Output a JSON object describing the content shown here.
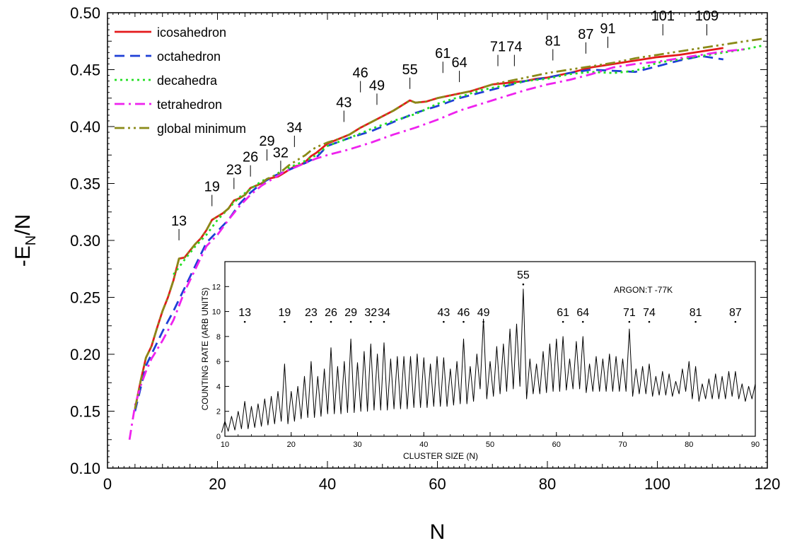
{
  "chart_data": {
    "type": "line",
    "xlabel": "N",
    "ylabel": "-E",
    "ylabel_subscript": "N",
    "ylabel_suffix": "/N",
    "xlim": [
      0,
      120
    ],
    "ylim": [
      0.1,
      0.5
    ],
    "x_ticks": [
      0,
      20,
      40,
      60,
      80,
      100,
      120
    ],
    "x_tick_labels": [
      "0",
      "20",
      "40",
      "60",
      "80",
      "100",
      "120"
    ],
    "y_ticks": [
      0.1,
      0.15,
      0.2,
      0.25,
      0.3,
      0.35,
      0.4,
      0.45,
      0.5
    ],
    "y_tick_labels": [
      "0.10",
      "0.15",
      "0.20",
      "0.25",
      "0.30",
      "0.35",
      "0.40",
      "0.45",
      "0.50"
    ],
    "legend_position": "top-left",
    "series": [
      {
        "name": "icosahedron",
        "color": "#e41a1c",
        "dash": "solid",
        "x": [
          5,
          6,
          7,
          8,
          9,
          10,
          11,
          12,
          13,
          14,
          15,
          16,
          17,
          18,
          19,
          20,
          21,
          22,
          23,
          24,
          25,
          26,
          27,
          28,
          29,
          30,
          31,
          32,
          33,
          34,
          35,
          36,
          37,
          38,
          39,
          40,
          42,
          44,
          46,
          48,
          50,
          52,
          54,
          55,
          56,
          58,
          60,
          62,
          64,
          66,
          68,
          70,
          72,
          74,
          76,
          78,
          80,
          84,
          88,
          92,
          96,
          100,
          104,
          108,
          112
        ],
        "y": [
          0.152,
          0.176,
          0.197,
          0.207,
          0.223,
          0.238,
          0.25,
          0.265,
          0.284,
          0.285,
          0.291,
          0.297,
          0.302,
          0.309,
          0.318,
          0.321,
          0.324,
          0.328,
          0.335,
          0.337,
          0.34,
          0.346,
          0.348,
          0.35,
          0.354,
          0.355,
          0.356,
          0.359,
          0.362,
          0.365,
          0.366,
          0.369,
          0.374,
          0.377,
          0.381,
          0.385,
          0.389,
          0.393,
          0.399,
          0.404,
          0.409,
          0.414,
          0.42,
          0.423,
          0.421,
          0.422,
          0.425,
          0.427,
          0.429,
          0.431,
          0.434,
          0.437,
          0.438,
          0.439,
          0.44,
          0.442,
          0.443,
          0.447,
          0.452,
          0.455,
          0.458,
          0.461,
          0.463,
          0.466,
          0.469
        ]
      },
      {
        "name": "octahedron",
        "color": "#1f3fd6",
        "dash": "dashed",
        "x": [
          5,
          6,
          7,
          8,
          10,
          12,
          14,
          16,
          18,
          20,
          22,
          24,
          26,
          28,
          30,
          32,
          34,
          36,
          38,
          40,
          44,
          48,
          52,
          56,
          60,
          64,
          68,
          72,
          76,
          80,
          84,
          88,
          92,
          96,
          100,
          104,
          108,
          112
        ],
        "y": [
          0.15,
          0.17,
          0.19,
          0.2,
          0.22,
          0.238,
          0.258,
          0.278,
          0.298,
          0.308,
          0.318,
          0.332,
          0.342,
          0.35,
          0.356,
          0.36,
          0.364,
          0.368,
          0.373,
          0.383,
          0.39,
          0.396,
          0.404,
          0.412,
          0.418,
          0.425,
          0.43,
          0.435,
          0.44,
          0.443,
          0.447,
          0.45,
          0.449,
          0.448,
          0.453,
          0.458,
          0.462,
          0.459
        ]
      },
      {
        "name": "decahedra",
        "color": "#22e022",
        "dash": "dotted",
        "x": [
          12,
          14,
          16,
          18,
          20,
          22,
          24,
          26,
          28,
          30,
          32,
          34,
          36,
          38,
          40,
          44,
          48,
          52,
          56,
          60,
          64,
          68,
          72,
          76,
          80,
          84,
          88,
          92,
          96,
          100,
          104,
          108,
          112,
          116,
          119
        ],
        "y": [
          0.27,
          0.283,
          0.295,
          0.305,
          0.318,
          0.328,
          0.338,
          0.345,
          0.352,
          0.356,
          0.362,
          0.366,
          0.37,
          0.375,
          0.383,
          0.39,
          0.398,
          0.405,
          0.411,
          0.42,
          0.426,
          0.432,
          0.436,
          0.44,
          0.442,
          0.446,
          0.448,
          0.447,
          0.449,
          0.456,
          0.459,
          0.462,
          0.465,
          0.468,
          0.471
        ]
      },
      {
        "name": "tetrahedron",
        "color": "#ee22ee",
        "dash": "dashdot",
        "x": [
          4,
          5,
          6,
          7,
          8,
          10,
          12,
          14,
          16,
          18,
          20,
          22,
          24,
          26,
          28,
          30,
          32,
          34,
          36,
          38,
          40,
          44,
          48,
          52,
          56,
          60,
          64,
          68,
          72,
          76,
          80,
          84,
          88,
          92,
          96,
          100,
          104,
          108,
          112,
          116
        ],
        "y": [
          0.125,
          0.155,
          0.172,
          0.185,
          0.196,
          0.212,
          0.23,
          0.255,
          0.275,
          0.295,
          0.305,
          0.318,
          0.33,
          0.34,
          0.348,
          0.354,
          0.36,
          0.364,
          0.368,
          0.372,
          0.375,
          0.38,
          0.386,
          0.393,
          0.399,
          0.406,
          0.414,
          0.42,
          0.426,
          0.432,
          0.437,
          0.441,
          0.446,
          0.452,
          0.455,
          0.457,
          0.46,
          0.463,
          0.466,
          0.468
        ]
      },
      {
        "name": "global minimum",
        "color": "#8a8a18",
        "dash": "dashdotdot",
        "x": [
          5,
          6,
          7,
          8,
          9,
          10,
          11,
          12,
          13,
          14,
          15,
          16,
          17,
          18,
          19,
          20,
          21,
          22,
          23,
          24,
          25,
          26,
          27,
          28,
          29,
          30,
          31,
          32,
          33,
          34,
          35,
          36,
          37,
          38,
          39,
          40,
          42,
          44,
          46,
          48,
          50,
          52,
          54,
          55,
          56,
          58,
          60,
          62,
          64,
          66,
          68,
          70,
          72,
          74,
          76,
          78,
          80,
          84,
          88,
          92,
          96,
          100,
          104,
          108,
          112,
          116,
          119
        ],
        "y": [
          0.152,
          0.176,
          0.197,
          0.207,
          0.223,
          0.238,
          0.25,
          0.265,
          0.284,
          0.285,
          0.291,
          0.297,
          0.302,
          0.309,
          0.318,
          0.321,
          0.324,
          0.328,
          0.335,
          0.337,
          0.34,
          0.346,
          0.348,
          0.35,
          0.354,
          0.356,
          0.358,
          0.362,
          0.366,
          0.369,
          0.372,
          0.375,
          0.379,
          0.382,
          0.384,
          0.386,
          0.389,
          0.393,
          0.399,
          0.404,
          0.409,
          0.414,
          0.42,
          0.423,
          0.421,
          0.422,
          0.425,
          0.427,
          0.429,
          0.431,
          0.434,
          0.437,
          0.439,
          0.441,
          0.443,
          0.445,
          0.447,
          0.45,
          0.453,
          0.456,
          0.46,
          0.463,
          0.466,
          0.469,
          0.472,
          0.475,
          0.477
        ]
      }
    ],
    "annotations": [
      {
        "label": "13",
        "x": 13,
        "y": 0.31
      },
      {
        "label": "19",
        "x": 19,
        "y": 0.34
      },
      {
        "label": "23",
        "x": 23,
        "y": 0.355
      },
      {
        "label": "26",
        "x": 26,
        "y": 0.366
      },
      {
        "label": "29",
        "x": 29,
        "y": 0.38
      },
      {
        "label": "32",
        "x": 31.5,
        "y": 0.37
      },
      {
        "label": "34",
        "x": 34,
        "y": 0.392
      },
      {
        "label": "43",
        "x": 43,
        "y": 0.414
      },
      {
        "label": "46",
        "x": 46,
        "y": 0.44
      },
      {
        "label": "49",
        "x": 49,
        "y": 0.429
      },
      {
        "label": "55",
        "x": 55,
        "y": 0.443
      },
      {
        "label": "61",
        "x": 61,
        "y": 0.457
      },
      {
        "label": "64",
        "x": 64,
        "y": 0.449
      },
      {
        "label": "71",
        "x": 71,
        "y": 0.463
      },
      {
        "label": "74",
        "x": 74,
        "y": 0.463
      },
      {
        "label": "81",
        "x": 81,
        "y": 0.468
      },
      {
        "label": "87",
        "x": 87,
        "y": 0.474
      },
      {
        "label": "91",
        "x": 91,
        "y": 0.479
      },
      {
        "label": "101",
        "x": 101,
        "y": 0.49
      },
      {
        "label": "109",
        "x": 109,
        "y": 0.49
      }
    ],
    "inset": {
      "xlabel": "CLUSTER SIZE (N)",
      "ylabel": "COUNTING RATE (ARB UNITS)",
      "title": "ARGON:T -77K",
      "xlim": [
        10,
        90
      ],
      "ylim": [
        0,
        14
      ],
      "x_ticks": [
        10,
        20,
        30,
        40,
        50,
        60,
        70,
        80,
        90
      ],
      "x_tick_labels": [
        "10",
        "20",
        "30",
        "40",
        "50",
        "60",
        "70",
        "80",
        "90"
      ],
      "y_ticks": [
        0,
        2,
        4,
        6,
        8,
        10,
        12
      ],
      "y_tick_labels": [
        "0",
        "2",
        "4",
        "6",
        "8",
        "10",
        "12"
      ],
      "series": [
        {
          "name": "",
          "x": [
            10,
            11,
            12,
            13,
            14,
            15,
            16,
            17,
            18,
            19,
            20,
            21,
            22,
            23,
            24,
            25,
            26,
            27,
            28,
            29,
            30,
            31,
            32,
            33,
            34,
            35,
            36,
            37,
            38,
            39,
            40,
            41,
            42,
            43,
            44,
            45,
            46,
            47,
            48,
            49,
            50,
            51,
            52,
            53,
            54,
            55,
            56,
            57,
            58,
            59,
            60,
            61,
            62,
            63,
            64,
            65,
            66,
            67,
            68,
            69,
            70,
            71,
            72,
            73,
            74,
            75,
            76,
            77,
            78,
            79,
            80,
            81,
            82,
            83,
            84,
            85,
            86,
            87,
            88,
            89,
            90
          ],
          "peak": [
            1.2,
            1.6,
            2.0,
            2.8,
            2.4,
            2.6,
            3.0,
            3.2,
            3.6,
            5.8,
            3.6,
            4.0,
            4.8,
            6.0,
            4.8,
            5.4,
            7.1,
            5.6,
            6.0,
            7.8,
            5.9,
            6.8,
            7.4,
            6.6,
            7.5,
            6.2,
            6.4,
            6.4,
            6.4,
            6.6,
            6.3,
            5.8,
            6.4,
            6.3,
            5.4,
            6.0,
            7.8,
            5.6,
            6.6,
            9.4,
            6.0,
            7.2,
            7.4,
            8.6,
            9.0,
            11.8,
            6.2,
            5.8,
            6.8,
            7.4,
            7.8,
            8.0,
            6.2,
            7.6,
            8.0,
            5.8,
            6.4,
            6.2,
            6.6,
            6.4,
            6.2,
            8.6,
            5.4,
            5.6,
            5.8,
            4.8,
            5.2,
            5.0,
            4.4,
            5.4,
            6.0,
            5.6,
            4.2,
            4.6,
            5.0,
            4.8,
            5.2,
            5.2,
            4.2,
            4.0,
            4.2
          ],
          "valley": [
            0.3,
            0.4,
            0.5,
            0.6,
            0.6,
            0.7,
            0.8,
            0.9,
            1.0,
            1.2,
            1.0,
            1.2,
            1.4,
            1.5,
            1.5,
            1.6,
            1.8,
            1.8,
            1.8,
            1.9,
            1.9,
            2.0,
            2.0,
            2.1,
            2.1,
            2.1,
            2.2,
            2.2,
            2.2,
            2.3,
            2.3,
            2.3,
            2.4,
            2.4,
            2.4,
            2.5,
            2.6,
            2.6,
            2.8,
            3.8,
            3.0,
            3.2,
            3.4,
            3.6,
            3.8,
            4.0,
            3.0,
            3.4,
            3.4,
            3.5,
            3.6,
            3.6,
            3.7,
            3.8,
            3.8,
            3.5,
            3.6,
            3.6,
            3.6,
            3.6,
            3.6,
            3.6,
            3.2,
            3.4,
            3.4,
            3.2,
            3.3,
            3.3,
            3.2,
            3.4,
            3.6,
            3.0,
            2.8,
            3.0,
            3.0,
            3.0,
            3.0,
            3.2,
            3.0,
            2.8,
            3.0
          ]
        }
      ],
      "annotations": [
        {
          "label": "13",
          "x": 13,
          "y": 9.4
        },
        {
          "label": "19",
          "x": 19,
          "y": 9.4
        },
        {
          "label": "23",
          "x": 23,
          "y": 9.4
        },
        {
          "label": "26",
          "x": 26,
          "y": 9.4
        },
        {
          "label": "29",
          "x": 29,
          "y": 9.4
        },
        {
          "label": "32",
          "x": 32,
          "y": 9.4
        },
        {
          "label": "34",
          "x": 34,
          "y": 9.4
        },
        {
          "label": "43",
          "x": 43,
          "y": 9.4
        },
        {
          "label": "46",
          "x": 46,
          "y": 9.4
        },
        {
          "label": "49",
          "x": 49,
          "y": 9.4
        },
        {
          "label": "55",
          "x": 55,
          "y": 12.4
        },
        {
          "label": "61",
          "x": 61,
          "y": 9.4
        },
        {
          "label": "64",
          "x": 64,
          "y": 9.4
        },
        {
          "label": "71",
          "x": 71,
          "y": 9.4
        },
        {
          "label": "74",
          "x": 74,
          "y": 9.4
        },
        {
          "label": "81",
          "x": 81,
          "y": 9.4
        },
        {
          "label": "87",
          "x": 87,
          "y": 9.4
        }
      ]
    }
  }
}
